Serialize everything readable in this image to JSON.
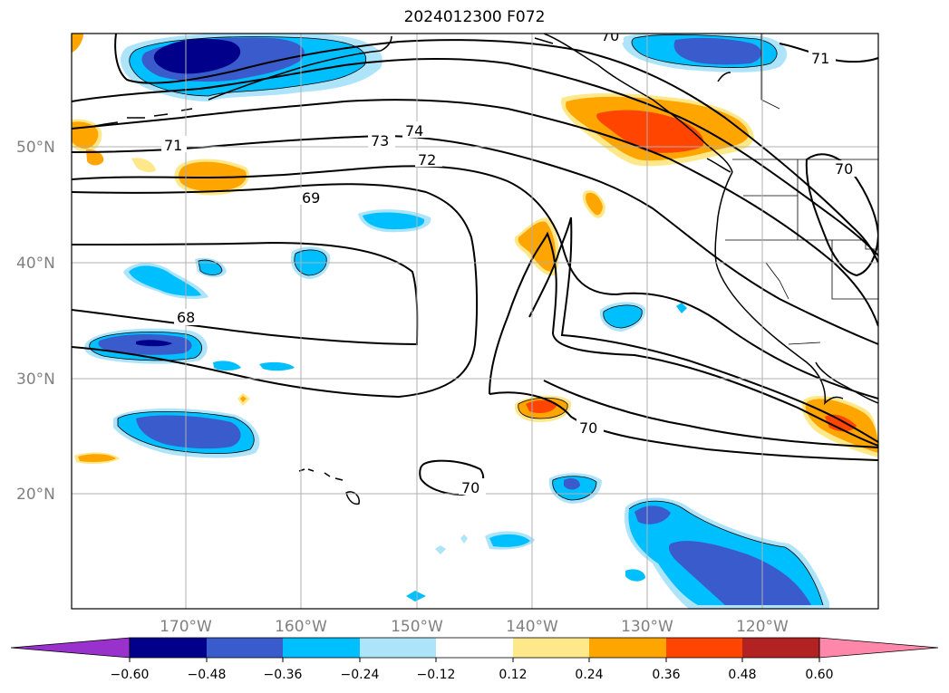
{
  "title": "2024012300 F072",
  "map": {
    "lat_ticks": [
      "50°N",
      "40°N",
      "30°N",
      "20°N"
    ],
    "lon_ticks": [
      "170°W",
      "160°W",
      "150°W",
      "140°W",
      "130°W",
      "120°W"
    ],
    "contour_labels": [
      "74",
      "73",
      "72",
      "71",
      "71",
      "70",
      "69",
      "68",
      "70",
      "70",
      "70"
    ],
    "grid": true,
    "domain": {
      "lon_min": -180,
      "lon_max": -110,
      "lat_min": 10,
      "lat_max": 60
    }
  },
  "colorbar": {
    "ticks": [
      "−0.60",
      "−0.48",
      "−0.36",
      "−0.24",
      "−0.12",
      "0.12",
      "0.24",
      "0.36",
      "0.48",
      "0.60"
    ],
    "colors": [
      "#9932cc",
      "#00008b",
      "#3a5bcc",
      "#00bfff",
      "#aee4fa",
      "#ffffff",
      "#ffe88a",
      "#ffa500",
      "#ff4500",
      "#b22222",
      "#ff88aa"
    ],
    "extend": "both"
  },
  "palette": {
    "deep_blue": "#00008b",
    "blue": "#3a5bcc",
    "cyan": "#00bfff",
    "light_cyan": "#aee4fa",
    "light_yellow": "#ffe88a",
    "orange": "#ffa500",
    "red_orange": "#ff4500"
  }
}
